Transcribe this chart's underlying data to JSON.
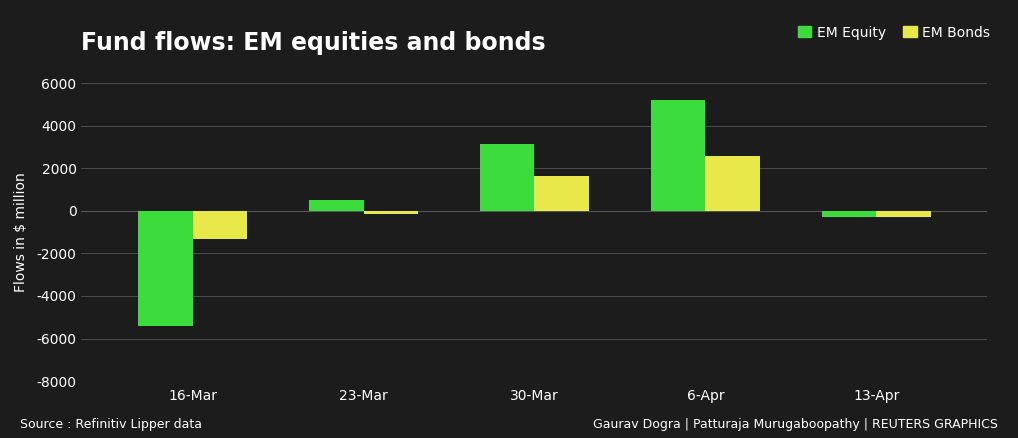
{
  "title": "Fund flows: EM equities and bonds",
  "categories": [
    "16-Mar",
    "23-Mar",
    "30-Mar",
    "6-Apr",
    "13-Apr"
  ],
  "em_equity": [
    -5400,
    500,
    3150,
    5200,
    -300
  ],
  "em_bonds": [
    -1300,
    -150,
    1650,
    2600,
    -300
  ],
  "em_equity_color": "#3ddc3d",
  "em_bonds_color": "#e8e84a",
  "ylabel": "Flows in $ million",
  "ylim": [
    -8000,
    6000
  ],
  "yticks": [
    -8000,
    -6000,
    -4000,
    -2000,
    0,
    2000,
    4000,
    6000
  ],
  "background_color": "#1c1c1c",
  "plot_bg_color": "#1c1c1c",
  "grid_color": "#555555",
  "text_color": "#ffffff",
  "source_text": "Source : Refinitiv Lipper data",
  "credit_text": "Gaurav Dogra | Patturaja Murugaboopathy | REUTERS GRAPHICS",
  "legend_labels": [
    "EM Equity",
    "EM Bonds"
  ],
  "bar_width": 0.32,
  "title_fontsize": 17,
  "axis_fontsize": 10,
  "tick_fontsize": 10,
  "legend_fontsize": 10,
  "footer_fontsize": 9
}
